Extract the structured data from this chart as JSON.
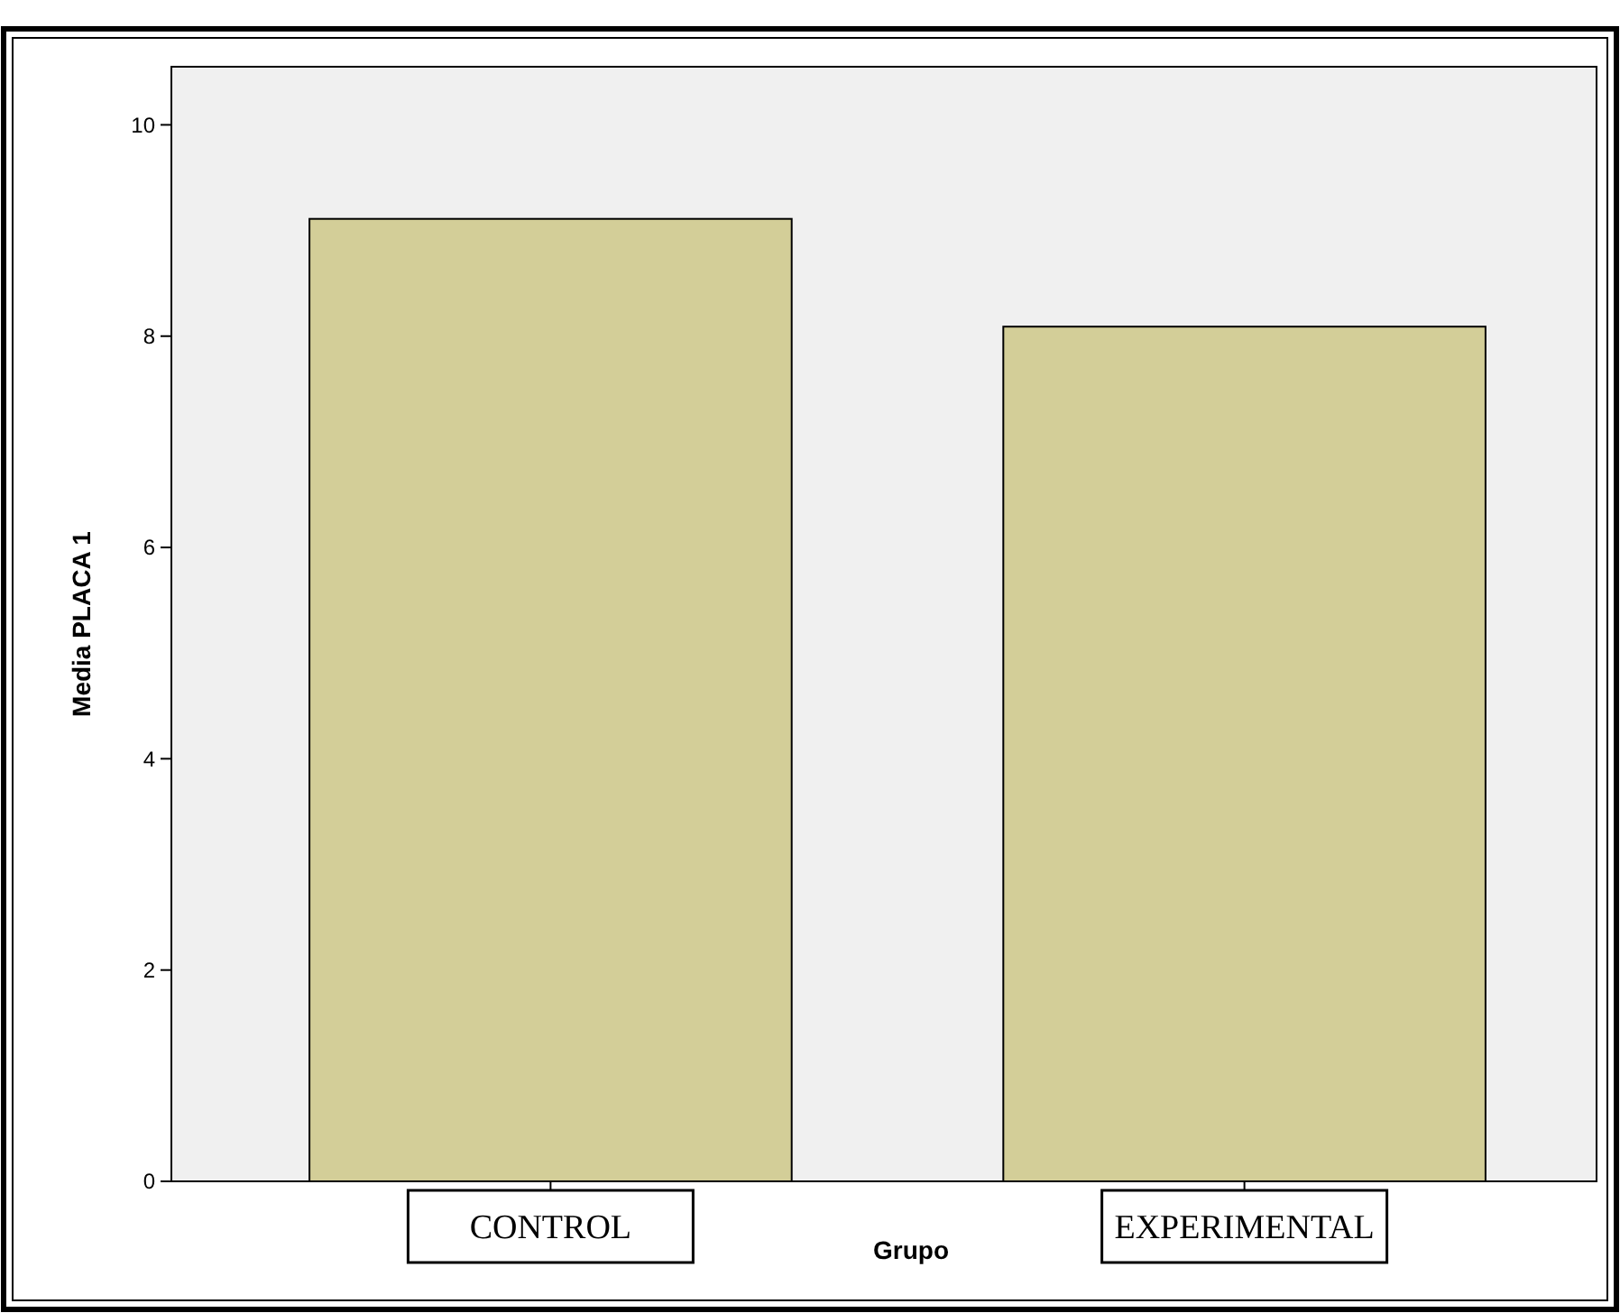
{
  "chart_data": {
    "type": "bar",
    "xlabel": "Grupo",
    "ylabel": "Media PLACA 1",
    "categories": [
      "CONTROL",
      "EXPERIMENTAL"
    ],
    "values": [
      9.11,
      8.09
    ],
    "color": "#d3ce98",
    "ylim": [
      0,
      10.55
    ],
    "yticks": [
      0,
      2,
      4,
      6,
      8,
      10
    ],
    "grid": false
  }
}
